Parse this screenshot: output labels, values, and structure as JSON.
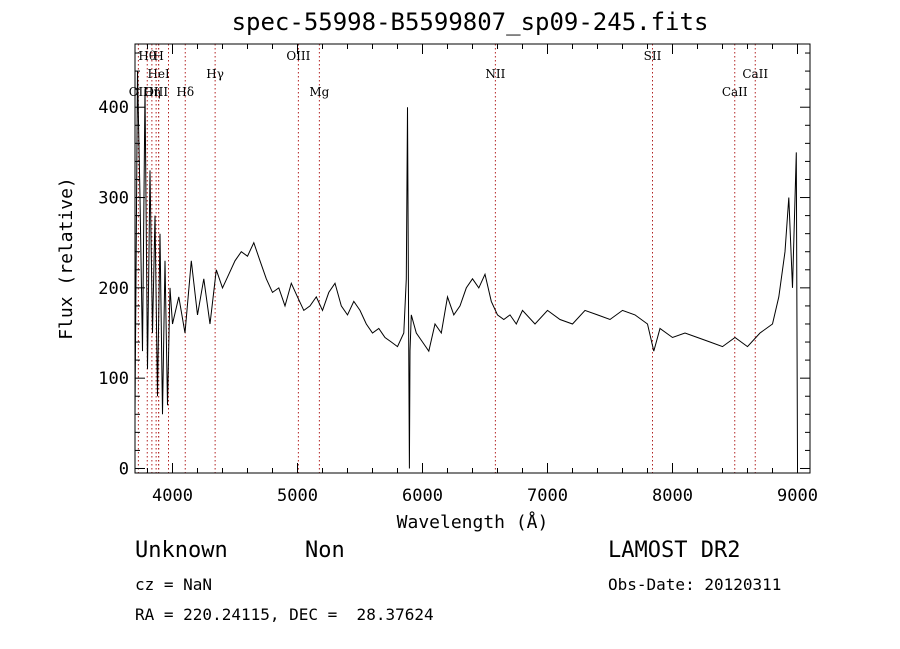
{
  "chart_data": {
    "type": "line",
    "title": "spec-55998-B5599807_sp09-245.fits",
    "xlabel": "Wavelength (Å)",
    "ylabel": "Flux (relative)",
    "xlim": [
      3700,
      9100
    ],
    "ylim": [
      -5,
      470
    ],
    "xticks": [
      4000,
      5000,
      6000,
      7000,
      8000,
      9000
    ],
    "yticks": [
      0,
      100,
      200,
      300,
      400
    ],
    "grid": false,
    "series": [
      {
        "x": [
          3700,
          3720,
          3740,
          3760,
          3780,
          3800,
          3820,
          3840,
          3860,
          3880,
          3900,
          3920,
          3940,
          3960,
          3980,
          4000,
          4050,
          4100,
          4150,
          4200,
          4250,
          4300,
          4350,
          4400,
          4450,
          4500,
          4550,
          4600,
          4650,
          4700,
          4750,
          4800,
          4850,
          4900,
          4950,
          5000,
          5050,
          5100,
          5150,
          5200,
          5250,
          5300,
          5350,
          5400,
          5450,
          5500,
          5550,
          5600,
          5650,
          5700,
          5750,
          5800,
          5850,
          5870,
          5880,
          5890,
          5895,
          5900,
          5910,
          5930,
          5950,
          6000,
          6050,
          6100,
          6150,
          6200,
          6250,
          6300,
          6350,
          6400,
          6450,
          6500,
          6550,
          6600,
          6650,
          6700,
          6750,
          6800,
          6900,
          7000,
          7100,
          7200,
          7300,
          7400,
          7500,
          7600,
          7700,
          7800,
          7850,
          7900,
          8000,
          8100,
          8200,
          8300,
          8400,
          8500,
          8600,
          8700,
          8800,
          8850,
          8900,
          8930,
          8960,
          8990,
          9000
        ],
        "y": [
          60,
          440,
          300,
          130,
          420,
          110,
          330,
          150,
          280,
          80,
          260,
          60,
          230,
          70,
          200,
          160,
          190,
          150,
          230,
          170,
          210,
          160,
          220,
          200,
          215,
          230,
          240,
          235,
          250,
          230,
          210,
          195,
          200,
          180,
          205,
          190,
          175,
          180,
          190,
          175,
          195,
          205,
          180,
          170,
          185,
          175,
          160,
          150,
          155,
          145,
          140,
          135,
          150,
          210,
          400,
          120,
          0,
          130,
          170,
          160,
          150,
          140,
          130,
          160,
          150,
          190,
          170,
          180,
          200,
          210,
          200,
          215,
          185,
          170,
          165,
          170,
          160,
          175,
          160,
          175,
          165,
          160,
          175,
          170,
          165,
          175,
          170,
          160,
          130,
          155,
          145,
          150,
          145,
          140,
          135,
          145,
          135,
          150,
          160,
          190,
          240,
          300,
          200,
          350,
          5
        ]
      }
    ],
    "lines": [
      {
        "name": "OII",
        "wl": 3727,
        "row": 2
      },
      {
        "name": "Hθ",
        "wl": 3798,
        "row": 0
      },
      {
        "name": "Hη",
        "wl": 3835,
        "row": 3
      },
      {
        "name": "H",
        "wl": 3889,
        "row": 0
      },
      {
        "name": "HeI",
        "wl": 3889,
        "row": 1
      },
      {
        "name": "OIII",
        "wl": 3869,
        "row": 3
      },
      {
        "name": "Hδ",
        "wl": 4102,
        "row": 3
      },
      {
        "name": "Hγ",
        "wl": 4341,
        "row": 1
      },
      {
        "name": "OIII",
        "wl": 5007,
        "row": 0
      },
      {
        "name": "Mg",
        "wl": 5175,
        "row": 3
      },
      {
        "name": "NII",
        "wl": 6583,
        "row": 1
      },
      {
        "name": "SII",
        "wl": 7840,
        "row": 0
      },
      {
        "name": "CaII",
        "wl": 8498,
        "row": 3
      },
      {
        "name": "CaII",
        "wl": 8662,
        "row": 1
      },
      {
        "name": "",
        "wl": 3968,
        "row": -1
      }
    ]
  },
  "info": {
    "object_class": "Unknown",
    "object_subclass": "Non",
    "survey": "LAMOST DR2",
    "cz": "cz = NaN",
    "obs_date": "Obs-Date: 20120311",
    "coords": "RA = 220.24115, DEC =  28.37624"
  }
}
